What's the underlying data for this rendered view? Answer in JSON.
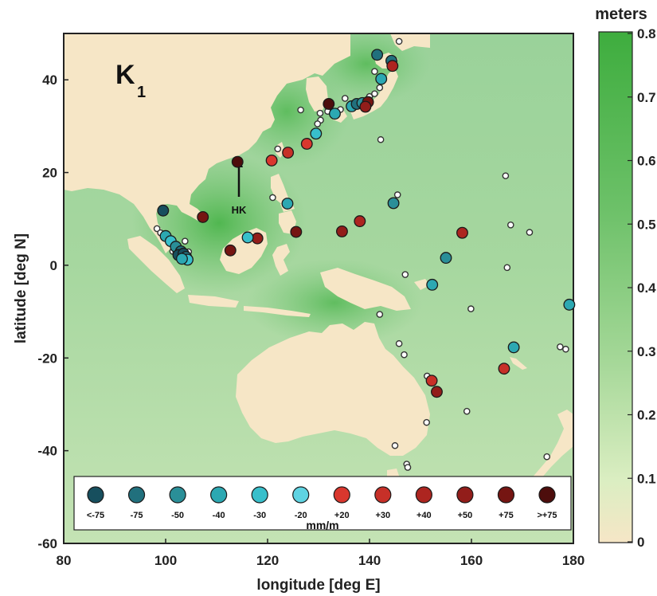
{
  "map": {
    "panel_label": "K",
    "panel_subscript": "1",
    "annotation": "HK",
    "xlabel": "longitude [deg E]",
    "ylabel": "latitude [deg N]",
    "xlim": [
      80,
      180
    ],
    "ylim": [
      -60,
      50
    ],
    "xticks": [
      "80",
      "100",
      "120",
      "140",
      "160",
      "180"
    ],
    "yticks": [
      "40",
      "20",
      "0",
      "-20",
      "-40",
      "-60"
    ]
  },
  "colorbar": {
    "title": "meters",
    "range": [
      0,
      0.8
    ],
    "ticks": [
      "0",
      "0.1",
      "0.2",
      "0.3",
      "0.4",
      "0.5",
      "0.6",
      "0.7",
      "0.8"
    ],
    "color_low": "#f6e6c6",
    "color_high": "#3ead3e"
  },
  "legend": {
    "units": "mm/m",
    "items": [
      {
        "label": "<-75",
        "color": "#174f5e"
      },
      {
        "label": "-75",
        "color": "#21707d"
      },
      {
        "label": "-50",
        "color": "#2a8f98"
      },
      {
        "label": "-40",
        "color": "#2ca8b2"
      },
      {
        "label": "-30",
        "color": "#38bfcb"
      },
      {
        "label": "-20",
        "color": "#5fd3e2"
      },
      {
        "label": "+20",
        "color": "#d9372e"
      },
      {
        "label": "+30",
        "color": "#c73028"
      },
      {
        "label": "+40",
        "color": "#ad2520"
      },
      {
        "label": "+50",
        "color": "#921d1a"
      },
      {
        "label": "+75",
        "color": "#751512"
      },
      {
        "label": ">+75",
        "color": "#4d0d0c"
      }
    ]
  },
  "stations": [
    {
      "lon": 99.5,
      "lat": 11.8,
      "color": "#174f5e"
    },
    {
      "lon": 100.0,
      "lat": 6.3,
      "color": "#2ca8b2"
    },
    {
      "lon": 101.0,
      "lat": 5.2,
      "color": "#38bfcb"
    },
    {
      "lon": 102.0,
      "lat": 4.0,
      "color": "#2a8f98"
    },
    {
      "lon": 103.0,
      "lat": 3.0,
      "color": "#21707d"
    },
    {
      "lon": 102.5,
      "lat": 2.2,
      "color": "#174f5e"
    },
    {
      "lon": 103.5,
      "lat": 2.5,
      "color": "#174f5e"
    },
    {
      "lon": 104.0,
      "lat": 1.8,
      "color": "#21707d"
    },
    {
      "lon": 104.3,
      "lat": 1.2,
      "color": "#38bfcb"
    },
    {
      "lon": 103.2,
      "lat": 1.4,
      "color": "#2ca8b2"
    },
    {
      "lon": 107.3,
      "lat": 10.4,
      "color": "#751512"
    },
    {
      "lon": 114.1,
      "lat": 22.3,
      "color": "#4d0d0c"
    },
    {
      "lon": 120.8,
      "lat": 22.6,
      "color": "#d9372e"
    },
    {
      "lon": 124.0,
      "lat": 24.3,
      "color": "#c73028"
    },
    {
      "lon": 127.7,
      "lat": 26.2,
      "color": "#d9372e"
    },
    {
      "lon": 129.5,
      "lat": 28.4,
      "color": "#38bfcb"
    },
    {
      "lon": 132.0,
      "lat": 34.8,
      "color": "#4d0d0c"
    },
    {
      "lon": 133.2,
      "lat": 32.7,
      "color": "#2ca8b2"
    },
    {
      "lon": 136.5,
      "lat": 34.3,
      "color": "#2ca8b2"
    },
    {
      "lon": 137.5,
      "lat": 34.8,
      "color": "#21707d"
    },
    {
      "lon": 138.6,
      "lat": 35.0,
      "color": "#2a8f98"
    },
    {
      "lon": 139.7,
      "lat": 35.2,
      "color": "#751512"
    },
    {
      "lon": 139.2,
      "lat": 34.2,
      "color": "#921d1a"
    },
    {
      "lon": 141.5,
      "lat": 45.4,
      "color": "#21707d"
    },
    {
      "lon": 142.3,
      "lat": 40.2,
      "color": "#2ca8b2"
    },
    {
      "lon": 144.3,
      "lat": 44.1,
      "color": "#21707d"
    },
    {
      "lon": 144.5,
      "lat": 43.0,
      "color": "#ad2520"
    },
    {
      "lon": 123.9,
      "lat": 13.3,
      "color": "#2ca8b2"
    },
    {
      "lon": 118.0,
      "lat": 5.8,
      "color": "#921d1a"
    },
    {
      "lon": 116.1,
      "lat": 6.0,
      "color": "#38bfcb"
    },
    {
      "lon": 125.6,
      "lat": 7.2,
      "color": "#751512"
    },
    {
      "lon": 112.7,
      "lat": 3.2,
      "color": "#751512"
    },
    {
      "lon": 134.6,
      "lat": 7.3,
      "color": "#921d1a"
    },
    {
      "lon": 138.1,
      "lat": 9.5,
      "color": "#ad2520"
    },
    {
      "lon": 144.7,
      "lat": 13.4,
      "color": "#2a8f98"
    },
    {
      "lon": 158.2,
      "lat": 7.0,
      "color": "#ad2520"
    },
    {
      "lon": 155.0,
      "lat": 1.6,
      "color": "#2a8f98"
    },
    {
      "lon": 152.3,
      "lat": -4.2,
      "color": "#2ca8b2"
    },
    {
      "lon": 179.2,
      "lat": -8.5,
      "color": "#2ca8b2"
    },
    {
      "lon": 168.3,
      "lat": -17.7,
      "color": "#2ca8b2"
    },
    {
      "lon": 166.4,
      "lat": -22.3,
      "color": "#c73028"
    },
    {
      "lon": 152.2,
      "lat": -24.9,
      "color": "#c73028"
    },
    {
      "lon": 153.2,
      "lat": -27.3,
      "color": "#921d1a"
    }
  ],
  "small_stations": [
    {
      "lon": 145.8,
      "lat": 48.3
    },
    {
      "lon": 141.0,
      "lat": 41.8
    },
    {
      "lon": 142.0,
      "lat": 38.3
    },
    {
      "lon": 141.0,
      "lat": 37.0
    },
    {
      "lon": 140.0,
      "lat": 36.4
    },
    {
      "lon": 135.2,
      "lat": 36.0
    },
    {
      "lon": 134.3,
      "lat": 33.6
    },
    {
      "lon": 131.8,
      "lat": 33.2
    },
    {
      "lon": 130.3,
      "lat": 32.8
    },
    {
      "lon": 130.4,
      "lat": 31.3
    },
    {
      "lon": 129.8,
      "lat": 30.5
    },
    {
      "lon": 126.5,
      "lat": 33.5
    },
    {
      "lon": 122.0,
      "lat": 25.1
    },
    {
      "lon": 142.2,
      "lat": 27.1
    },
    {
      "lon": 145.5,
      "lat": 15.2
    },
    {
      "lon": 121.0,
      "lat": 14.6
    },
    {
      "lon": 98.3,
      "lat": 7.9
    },
    {
      "lon": 99.0,
      "lat": 7.0
    },
    {
      "lon": 100.4,
      "lat": 5.4
    },
    {
      "lon": 101.4,
      "lat": 3.0
    },
    {
      "lon": 102.0,
      "lat": 2.7
    },
    {
      "lon": 104.5,
      "lat": 2.9
    },
    {
      "lon": 103.8,
      "lat": 5.2
    },
    {
      "lon": 147.0,
      "lat": -2.0
    },
    {
      "lon": 159.9,
      "lat": -9.4
    },
    {
      "lon": 166.7,
      "lat": 19.3
    },
    {
      "lon": 167.7,
      "lat": 8.7
    },
    {
      "lon": 171.4,
      "lat": 7.1
    },
    {
      "lon": 167.0,
      "lat": -0.5
    },
    {
      "lon": 177.4,
      "lat": -17.6
    },
    {
      "lon": 178.5,
      "lat": -18.1
    },
    {
      "lon": 142.0,
      "lat": -10.6
    },
    {
      "lon": 145.8,
      "lat": -16.9
    },
    {
      "lon": 146.8,
      "lat": -19.3
    },
    {
      "lon": 151.3,
      "lat": -23.9
    },
    {
      "lon": 151.2,
      "lat": -33.9
    },
    {
      "lon": 159.1,
      "lat": -31.5
    },
    {
      "lon": 145.0,
      "lat": -38.9
    },
    {
      "lon": 147.3,
      "lat": -42.9
    },
    {
      "lon": 147.5,
      "lat": -43.6
    },
    {
      "lon": 174.8,
      "lat": -41.3
    }
  ]
}
